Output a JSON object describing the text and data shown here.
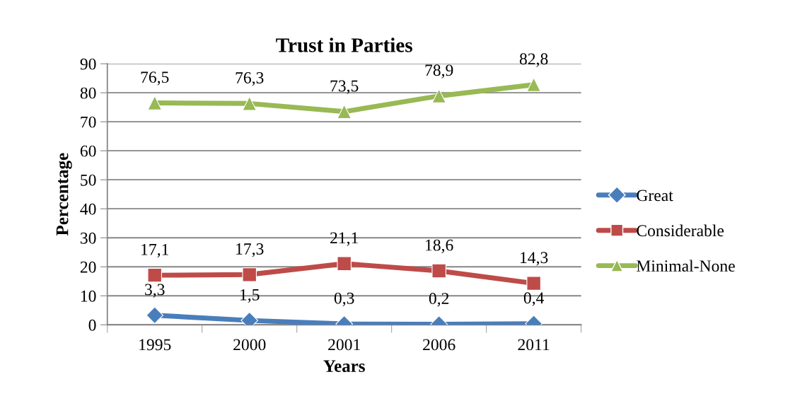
{
  "chart_data": {
    "type": "line",
    "title": "Trust in Parties",
    "xlabel": "Years",
    "ylabel": "Percentage",
    "categories": [
      "1995",
      "2000",
      "2001",
      "2006",
      "2011"
    ],
    "series": [
      {
        "name": "Great",
        "color": "#4a7ebb",
        "marker": "diamond",
        "values": [
          3.3,
          1.5,
          0.3,
          0.2,
          0.4
        ],
        "value_labels": [
          "3,3",
          "1,5",
          "0,3",
          "0,2",
          "0,4"
        ]
      },
      {
        "name": "Considerable",
        "color": "#be4b48",
        "marker": "square",
        "values": [
          17.1,
          17.3,
          21.1,
          18.6,
          14.3
        ],
        "value_labels": [
          "17,1",
          "17,3",
          "21,1",
          "18,6",
          "14,3"
        ]
      },
      {
        "name": "Minimal-None",
        "color": "#98b954",
        "marker": "triangle",
        "values": [
          76.5,
          76.3,
          73.5,
          78.9,
          82.8
        ],
        "value_labels": [
          "76,5",
          "76,3",
          "73,5",
          "78,9",
          "82,8"
        ]
      }
    ],
    "ylim": [
      0,
      90
    ],
    "yticks": [
      0,
      10,
      20,
      30,
      40,
      50,
      60,
      70,
      80,
      90
    ],
    "grid": "y",
    "legend": "right",
    "line_style": "solid"
  }
}
